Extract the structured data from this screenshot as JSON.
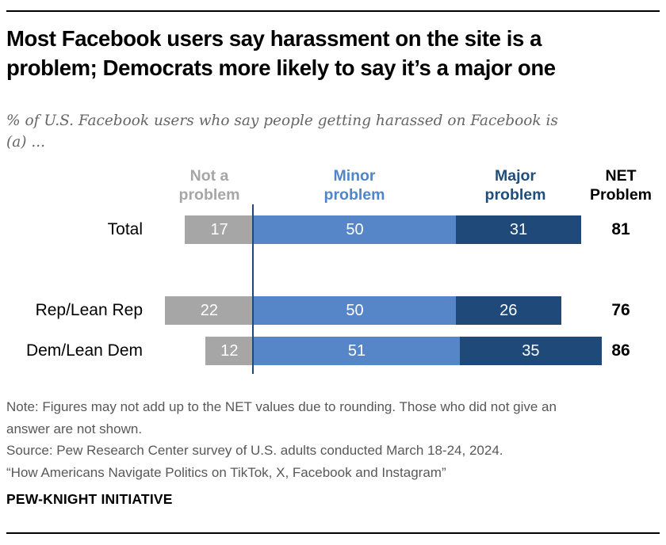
{
  "header": {
    "title_line1": "Most Facebook users say harassment on the site is a",
    "title_line2": "problem; Democrats more likely to say it’s a major one",
    "subtitle_line1": "% of U.S. Facebook users who say people getting harassed on Facebook is",
    "subtitle_line2": "(a) ..."
  },
  "column_headers": {
    "not_a_problem": "Not a problem",
    "minor_problem": "Minor problem",
    "major_problem": "Major problem",
    "net_problem": "NET Problem"
  },
  "chart_data": {
    "type": "bar",
    "orientation": "horizontal",
    "stacked": true,
    "value_unit": "percent",
    "categories": [
      "Total",
      "Rep/Lean Rep",
      "Dem/Lean Dem"
    ],
    "series": [
      {
        "name": "Not a problem",
        "color": "#a6a6a6",
        "values": [
          17,
          22,
          12
        ]
      },
      {
        "name": "Minor problem",
        "color": "#5686c8",
        "values": [
          50,
          50,
          51
        ]
      },
      {
        "name": "Major problem",
        "color": "#1e4978",
        "values": [
          31,
          26,
          35
        ]
      }
    ],
    "net_column": {
      "label": "NET Problem",
      "values": [
        81,
        76,
        86
      ]
    },
    "axis_color": "#1e4978",
    "value_labels": "inside-white",
    "legend_position": "column-headers-top"
  },
  "footer": {
    "note_line1": "Note: Figures may not add up to the NET values due to rounding. Those who did not give an",
    "note_line2": "answer are not shown.",
    "source": "Source: Pew Research Center survey of U.S. adults conducted March 18-24, 2024.",
    "quote": "“How Americans Navigate Politics on TikTok, X, Facebook and Instagram”",
    "brand": "PEW-KNIGHT INITIATIVE"
  }
}
